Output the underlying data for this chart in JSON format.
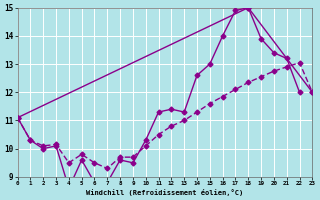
{
  "xlabel": "Windchill (Refroidissement éolien,°C)",
  "xlim": [
    0,
    23
  ],
  "ylim": [
    9,
    15
  ],
  "yticks": [
    9,
    10,
    11,
    12,
    13,
    14,
    15
  ],
  "xticks": [
    0,
    1,
    2,
    3,
    4,
    5,
    6,
    7,
    8,
    9,
    10,
    11,
    12,
    13,
    14,
    15,
    16,
    17,
    18,
    19,
    20,
    21,
    22,
    23
  ],
  "bg_color": "#b2e4e8",
  "grid_color": "#ffffff",
  "line_color": "#8B008B",
  "line1_x": [
    0,
    1,
    2,
    3,
    4,
    5,
    6,
    7,
    8,
    9,
    10,
    11,
    12,
    13,
    14,
    15,
    16,
    17,
    18,
    19,
    20,
    21,
    22
  ],
  "line1_y": [
    11.1,
    10.3,
    10.0,
    10.1,
    8.6,
    9.6,
    8.8,
    8.8,
    9.6,
    9.5,
    10.3,
    11.3,
    11.4,
    11.3,
    12.6,
    13.0,
    14.0,
    14.9,
    15.0,
    13.9,
    13.4,
    13.2,
    12.0
  ],
  "line2_x": [
    0,
    1,
    2,
    3,
    4,
    5,
    6,
    7,
    8,
    9,
    10,
    11,
    12,
    13,
    14,
    15,
    16,
    17,
    18,
    19,
    20,
    21,
    22,
    23
  ],
  "line2_y": [
    11.1,
    10.3,
    10.1,
    10.15,
    9.5,
    9.8,
    9.5,
    9.3,
    9.7,
    9.7,
    10.1,
    10.5,
    10.8,
    11.0,
    11.3,
    11.6,
    11.85,
    12.1,
    12.35,
    12.55,
    12.75,
    12.9,
    13.05,
    12.0
  ],
  "line3_x": [
    0,
    18,
    23
  ],
  "line3_y": [
    11.1,
    15.0,
    12.0
  ]
}
